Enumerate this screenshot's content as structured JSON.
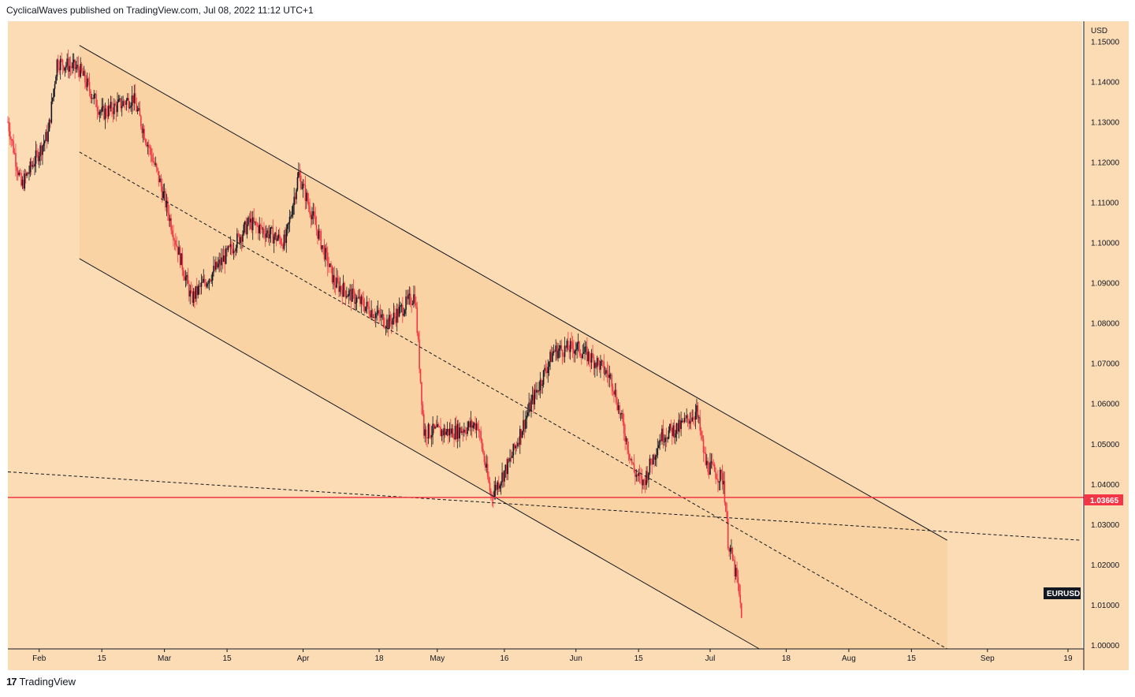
{
  "header": {
    "text": "CyclicalWaves published on TradingView.com, Jul 08, 2022 11:12 UTC+1"
  },
  "footer": {
    "logo": "17",
    "brand": "TradingView"
  },
  "colors": {
    "background": "#fcdcb5",
    "channel_fill": "#f8d09d",
    "price_line": "#f23645",
    "candle_up": "#131722",
    "candle_down": "#f23645"
  },
  "chart_data": {
    "type": "candlestick",
    "symbol": "EURUSD",
    "currency": "USD",
    "current_price": "1.03665",
    "y_ticks": [
      "1.15000",
      "1.14000",
      "1.13000",
      "1.12000",
      "1.11000",
      "1.10000",
      "1.09000",
      "1.08000",
      "1.07000",
      "1.06000",
      "1.05000",
      "1.04000",
      "1.03000",
      "1.02000",
      "1.01000",
      "1.00000"
    ],
    "x_ticks": [
      "Feb",
      "15",
      "Mar",
      "15",
      "Apr",
      "18",
      "May",
      "16",
      "Jun",
      "15",
      "Jul",
      "18",
      "Aug",
      "15",
      "Sep",
      "19"
    ],
    "ylim": [
      0.999,
      1.155
    ],
    "path_points": [
      [
        "Jan 25",
        1.13
      ],
      [
        "Jan 28",
        1.114
      ],
      [
        "Feb 03",
        1.127
      ],
      [
        "Feb 05",
        1.145
      ],
      [
        "Feb 10",
        1.143
      ],
      [
        "Feb 15",
        1.132
      ],
      [
        "Feb 22",
        1.136
      ],
      [
        "Feb 28",
        1.115
      ],
      [
        "Mar 07",
        1.086
      ],
      [
        "Mar 15",
        1.097
      ],
      [
        "Mar 20",
        1.105
      ],
      [
        "Mar 28",
        1.1
      ],
      [
        "Mar 31",
        1.117
      ],
      [
        "Apr 08",
        1.09
      ],
      [
        "Apr 14",
        1.085
      ],
      [
        "Apr 20",
        1.08
      ],
      [
        "Apr 26",
        1.087
      ],
      [
        "Apr 28",
        1.053
      ],
      [
        "May 05",
        1.053
      ],
      [
        "May 10",
        1.055
      ],
      [
        "May 13",
        1.037
      ],
      [
        "May 17",
        1.045
      ],
      [
        "May 22",
        1.06
      ],
      [
        "May 27",
        1.073
      ],
      [
        "Jun 01",
        1.074
      ],
      [
        "Jun 06",
        1.07
      ],
      [
        "Jun 09",
        1.066
      ],
      [
        "Jun 14",
        1.043
      ],
      [
        "Jun 16",
        1.04
      ],
      [
        "Jun 20",
        1.052
      ],
      [
        "Jun 24",
        1.054
      ],
      [
        "Jun 28",
        1.058
      ],
      [
        "Jun 30",
        1.045
      ],
      [
        "Jul 04",
        1.041
      ],
      [
        "Jul 05",
        1.026
      ],
      [
        "Jul 07",
        1.016
      ],
      [
        "Jul 08",
        1.008
      ]
    ],
    "channel": {
      "upper": [
        [
          "Feb 10",
          1.149
        ],
        [
          "Aug 23",
          1.026
        ]
      ],
      "lower": [
        [
          "Feb 10",
          1.096
        ],
        [
          "Jul 12",
          0.999
        ]
      ],
      "mid": [
        [
          "Feb 10",
          1.1225
        ],
        [
          "Aug 23",
          0.999
        ]
      ]
    },
    "dashed_support": [
      [
        "Jan 25",
        1.043
      ],
      [
        "Sep 22",
        1.026
      ]
    ],
    "horizontal_level": 1.03665
  }
}
